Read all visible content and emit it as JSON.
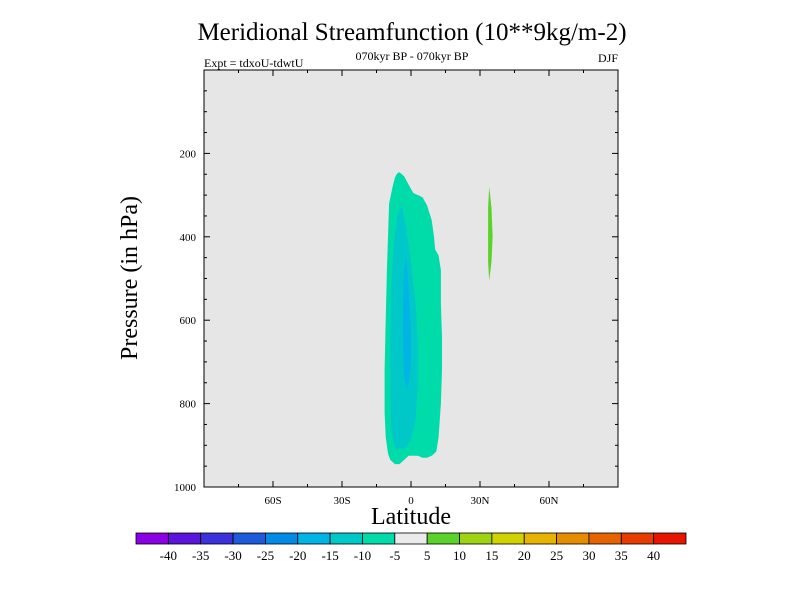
{
  "chart_data": {
    "type": "contour",
    "title": "Meridional Streamfunction (10**9kg/m-2)",
    "subtitle_left": "Expt = tdxoU-tdwtU",
    "subtitle_center": "070kyr BP - 070kyr BP",
    "subtitle_right": "DJF",
    "xlabel": "Latitude",
    "ylabel": "Pressure (in hPa)",
    "xlim": [
      -90,
      90
    ],
    "ylim": [
      1000,
      0
    ],
    "x_ticks": [
      {
        "value": -60,
        "label": "60S"
      },
      {
        "value": -30,
        "label": "30S"
      },
      {
        "value": 0,
        "label": "0"
      },
      {
        "value": 30,
        "label": "30N"
      },
      {
        "value": 60,
        "label": "60N"
      }
    ],
    "y_ticks": [
      {
        "value": 200,
        "label": "200"
      },
      {
        "value": 400,
        "label": "400"
      },
      {
        "value": 600,
        "label": "600"
      },
      {
        "value": 800,
        "label": "800"
      },
      {
        "value": 1000,
        "label": "1000"
      }
    ],
    "background_color": "#e6e6e6",
    "contour_regions": [
      {
        "level": "-10 to -5",
        "color": "#00dbaa",
        "outline": [
          [
            -5,
            245
          ],
          [
            -3,
            255
          ],
          [
            -1,
            275
          ],
          [
            1,
            295
          ],
          [
            5,
            305
          ],
          [
            7,
            325
          ],
          [
            9,
            360
          ],
          [
            10,
            400
          ],
          [
            10.5,
            430
          ],
          [
            12,
            445
          ],
          [
            13,
            480
          ],
          [
            13,
            560
          ],
          [
            13.5,
            640
          ],
          [
            13.5,
            720
          ],
          [
            13,
            800
          ],
          [
            12,
            880
          ],
          [
            11,
            915
          ],
          [
            9,
            925
          ],
          [
            7,
            930
          ],
          [
            5,
            930
          ],
          [
            3,
            925
          ],
          [
            -1,
            925
          ],
          [
            -3,
            935
          ],
          [
            -5,
            945
          ],
          [
            -7,
            945
          ],
          [
            -9,
            935
          ],
          [
            -10,
            920
          ],
          [
            -11,
            880
          ],
          [
            -11.5,
            820
          ],
          [
            -11.5,
            720
          ],
          [
            -11,
            600
          ],
          [
            -10.5,
            480
          ],
          [
            -10,
            400
          ],
          [
            -9.5,
            320
          ],
          [
            -8,
            280
          ],
          [
            -7,
            258
          ],
          [
            -6,
            248
          ]
        ]
      },
      {
        "level": "-15 to -10",
        "color": "#00c8c8",
        "outline": [
          [
            -4,
            325
          ],
          [
            -2,
            380
          ],
          [
            0,
            460
          ],
          [
            2,
            560
          ],
          [
            3,
            650
          ],
          [
            3,
            760
          ],
          [
            2,
            840
          ],
          [
            0,
            885
          ],
          [
            -2,
            905
          ],
          [
            -5,
            910
          ],
          [
            -7,
            905
          ],
          [
            -8.5,
            870
          ],
          [
            -9,
            780
          ],
          [
            -9,
            640
          ],
          [
            -8.5,
            520
          ],
          [
            -7.5,
            420
          ],
          [
            -6,
            350
          ]
        ]
      },
      {
        "level": "-20 to -15",
        "color": "#00b4e6",
        "outline": [
          [
            -2,
            450
          ],
          [
            -1,
            530
          ],
          [
            0,
            620
          ],
          [
            0,
            700
          ],
          [
            -1,
            750
          ],
          [
            -2,
            770
          ],
          [
            -3,
            730
          ],
          [
            -3.5,
            650
          ],
          [
            -3.5,
            540
          ],
          [
            -3,
            480
          ]
        ]
      },
      {
        "level": "5 to 10",
        "color": "#5ad22a",
        "outline": [
          [
            34,
            280
          ],
          [
            35,
            330
          ],
          [
            35.5,
            400
          ],
          [
            35,
            460
          ],
          [
            34,
            505
          ],
          [
            33.5,
            460
          ],
          [
            33.5,
            400
          ],
          [
            33.5,
            330
          ]
        ]
      }
    ],
    "colorbar": {
      "labels": [
        "-40",
        "-35",
        "-30",
        "-25",
        "-20",
        "-15",
        "-10",
        "-5",
        "5",
        "10",
        "15",
        "20",
        "25",
        "30",
        "35",
        "40"
      ],
      "colors": [
        "#8c00e6",
        "#5a14dc",
        "#3c32dc",
        "#1e5adc",
        "#008ce6",
        "#00b4e6",
        "#00c8c8",
        "#00dbaa",
        "#ebebeb",
        "#5ad22a",
        "#a0d214",
        "#d2d200",
        "#e6b400",
        "#e68c00",
        "#e66400",
        "#e63c00",
        "#e61400"
      ]
    }
  }
}
